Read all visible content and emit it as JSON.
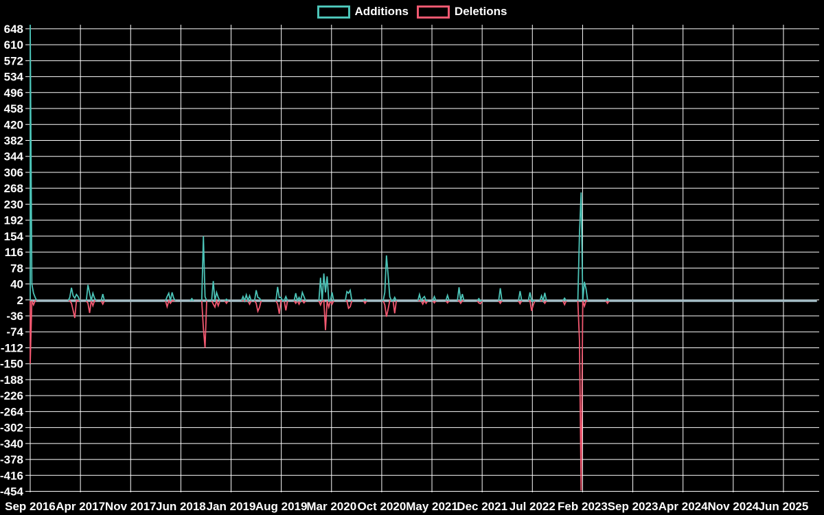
{
  "legend": {
    "additions_label": "Additions",
    "deletions_label": "Deletions"
  },
  "colors": {
    "additions": "#4cc4b8",
    "deletions": "#f25870",
    "grid": "#ffffff",
    "baseline": "#a2bbc4",
    "background": "#000000",
    "text": "#ffffff"
  },
  "chart_data": {
    "type": "line",
    "title": "",
    "legend_position": "top",
    "grid": true,
    "x_unit": "week",
    "x_tick_labels": [
      "Sep 2016",
      "Apr 2017",
      "Nov 2017",
      "Jun 2018",
      "Jan 2019",
      "Aug 2019",
      "Mar 2020",
      "Oct 2020",
      "May 2021",
      "Dec 2021",
      "Jul 2022",
      "Feb 2023",
      "Sep 2023",
      "Apr 2024",
      "Nov 2024",
      "Jun 2025"
    ],
    "y_ticks": [
      648,
      610,
      572,
      534,
      496,
      458,
      420,
      382,
      344,
      306,
      268,
      230,
      192,
      154,
      116,
      78,
      40,
      2,
      -36,
      -74,
      -112,
      -150,
      -188,
      -226,
      -264,
      -302,
      -340,
      -378,
      -416,
      -454
    ],
    "ylim": [
      -454,
      648
    ],
    "baseline_value": 0,
    "total_weeks": 477,
    "series": [
      {
        "name": "Additions",
        "points": [
          [
            0,
            660
          ],
          [
            1,
            40
          ],
          [
            2,
            18
          ],
          [
            3,
            8
          ],
          [
            24,
            8
          ],
          [
            25,
            31
          ],
          [
            26,
            12
          ],
          [
            27,
            6
          ],
          [
            28,
            15
          ],
          [
            29,
            10
          ],
          [
            35,
            38
          ],
          [
            36,
            18
          ],
          [
            38,
            18
          ],
          [
            39,
            6
          ],
          [
            44,
            16
          ],
          [
            83,
            10
          ],
          [
            84,
            18
          ],
          [
            86,
            20
          ],
          [
            87,
            6
          ],
          [
            98,
            5
          ],
          [
            105,
            154
          ],
          [
            106,
            10
          ],
          [
            111,
            47
          ],
          [
            113,
            20
          ],
          [
            114,
            8
          ],
          [
            119,
            4
          ],
          [
            129,
            10
          ],
          [
            131,
            14
          ],
          [
            133,
            12
          ],
          [
            137,
            25
          ],
          [
            138,
            8
          ],
          [
            139,
            6
          ],
          [
            150,
            33
          ],
          [
            151,
            8
          ],
          [
            152,
            8
          ],
          [
            155,
            10
          ],
          [
            161,
            18
          ],
          [
            163,
            8
          ],
          [
            165,
            20
          ],
          [
            166,
            10
          ],
          [
            176,
            55
          ],
          [
            178,
            65
          ],
          [
            179,
            20
          ],
          [
            180,
            58
          ],
          [
            183,
            20
          ],
          [
            192,
            22
          ],
          [
            193,
            18
          ],
          [
            194,
            25
          ],
          [
            203,
            4
          ],
          [
            215,
            20
          ],
          [
            216,
            108
          ],
          [
            217,
            62
          ],
          [
            218,
            10
          ],
          [
            221,
            8
          ],
          [
            236,
            15
          ],
          [
            238,
            6
          ],
          [
            239,
            10
          ],
          [
            245,
            10
          ],
          [
            253,
            13
          ],
          [
            260,
            32
          ],
          [
            262,
            16
          ],
          [
            272,
            5
          ],
          [
            285,
            30
          ],
          [
            297,
            23
          ],
          [
            303,
            20
          ],
          [
            310,
            12
          ],
          [
            312,
            19
          ],
          [
            324,
            6
          ],
          [
            333,
            160
          ],
          [
            334,
            258
          ],
          [
            336,
            45
          ],
          [
            337,
            28
          ],
          [
            350,
            5
          ]
        ]
      },
      {
        "name": "Deletions",
        "points": [
          [
            0,
            -150
          ],
          [
            2,
            -10
          ],
          [
            25,
            -6
          ],
          [
            26,
            -23
          ],
          [
            27,
            -41
          ],
          [
            35,
            -6
          ],
          [
            36,
            -29
          ],
          [
            38,
            -12
          ],
          [
            44,
            -8
          ],
          [
            83,
            -14
          ],
          [
            85,
            -6
          ],
          [
            105,
            -66
          ],
          [
            106,
            -112
          ],
          [
            111,
            -8
          ],
          [
            112,
            -15
          ],
          [
            114,
            -12
          ],
          [
            119,
            -6
          ],
          [
            133,
            -8
          ],
          [
            137,
            -6
          ],
          [
            138,
            -25
          ],
          [
            139,
            -16
          ],
          [
            150,
            -8
          ],
          [
            151,
            -31
          ],
          [
            155,
            -23
          ],
          [
            161,
            -6
          ],
          [
            163,
            -8
          ],
          [
            166,
            -5
          ],
          [
            176,
            -10
          ],
          [
            179,
            -70
          ],
          [
            181,
            -15
          ],
          [
            183,
            -8
          ],
          [
            193,
            -18
          ],
          [
            194,
            -14
          ],
          [
            203,
            -6
          ],
          [
            215,
            -10
          ],
          [
            216,
            -38
          ],
          [
            217,
            -20
          ],
          [
            221,
            -30
          ],
          [
            238,
            -8
          ],
          [
            240,
            -6
          ],
          [
            245,
            -5
          ],
          [
            253,
            -5
          ],
          [
            261,
            -6
          ],
          [
            272,
            -5
          ],
          [
            273,
            -7
          ],
          [
            285,
            -6
          ],
          [
            297,
            -7
          ],
          [
            304,
            -24
          ],
          [
            305,
            -10
          ],
          [
            312,
            -6
          ],
          [
            324,
            -9
          ],
          [
            333,
            -95
          ],
          [
            334,
            -452
          ],
          [
            336,
            -13
          ],
          [
            350,
            -6
          ]
        ]
      }
    ]
  }
}
